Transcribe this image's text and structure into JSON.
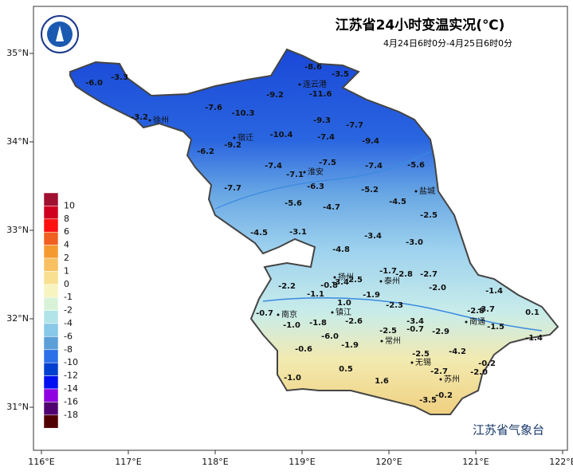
{
  "map": {
    "title": "江苏省24小时变温实况(℃)",
    "subtitle": "4月24日6时0分-4月25日6时0分",
    "footer": "江苏省气象台",
    "lon_ticks": [
      {
        "value": 116,
        "label": "116°E"
      },
      {
        "value": 117,
        "label": "117°E"
      },
      {
        "value": 118,
        "label": "118°E"
      },
      {
        "value": 119,
        "label": "119°E"
      },
      {
        "value": 120,
        "label": "120°E"
      },
      {
        "value": 121,
        "label": "121°E"
      },
      {
        "value": 122,
        "label": "122°E"
      }
    ],
    "lat_ticks": [
      {
        "value": 35,
        "label": "35°N"
      },
      {
        "value": 34,
        "label": "34°N"
      },
      {
        "value": 33,
        "label": "33°N"
      },
      {
        "value": 32,
        "label": "32°N"
      },
      {
        "value": 31,
        "label": "31°N"
      }
    ],
    "legend": {
      "labels": [
        10,
        8,
        6,
        4,
        2,
        1,
        0,
        -1,
        -2,
        -4,
        -6,
        -8,
        -10,
        -12,
        -14,
        -16,
        -18
      ],
      "colors": [
        "#a01030",
        "#d00020",
        "#ff1010",
        "#f06020",
        "#f59a30",
        "#f8c060",
        "#f8e090",
        "#f8f4c0",
        "#d8f2d8",
        "#b0e4e8",
        "#88c8e8",
        "#5a9fd8",
        "#2a70e8",
        "#0040d0",
        "#0010f0",
        "#9000e0",
        "#500070",
        "#500000"
      ]
    },
    "cities": [
      "徐州",
      "连云港",
      "宿迁",
      "淮安",
      "盐城",
      "扬州",
      "泰州",
      "南京",
      "镇江",
      "南通",
      "常州",
      "无锡",
      "苏州"
    ],
    "station_values": [
      "-6.0",
      "-3.3",
      "-3.2",
      "-7.6",
      "-10.3",
      "-9.2",
      "-8.6",
      "-3.5",
      "-11.6",
      "-9.3",
      "-7.7",
      "-10.4",
      "-7.4",
      "-9.2",
      "-6.2",
      "-9.4",
      "-7.5",
      "-7.4",
      "-7.1",
      "-7.4",
      "-5.6",
      "-6.3",
      "-7.7",
      "-5.2",
      "-4.5",
      "-5.6",
      "-4.7",
      "-2.5",
      "-4.5",
      "-3.1",
      "-3.4",
      "-3.0",
      "-4.8",
      "-1.7",
      "-2.8",
      "-2.7",
      "-2.5",
      "-2.2",
      "-0.8",
      "-3.4",
      "-2.0",
      "-1.4",
      "-1.1",
      "-1.9",
      "-2.3",
      "1.0",
      "-0.7",
      "-2.8",
      "-3.7",
      "0.1",
      "-1.0",
      "-1.8",
      "-2.6",
      "-3.4",
      "-1.5",
      "-2.5",
      "-0.7",
      "-2.9",
      "-6.0",
      "-1.4",
      "-0.6",
      "-1.9",
      "-4.2",
      "-2.5",
      "-0.2",
      "0.5",
      "-2.7",
      "-2.0",
      "-1.0",
      "1.6",
      "-0.2",
      "-3.5"
    ]
  }
}
